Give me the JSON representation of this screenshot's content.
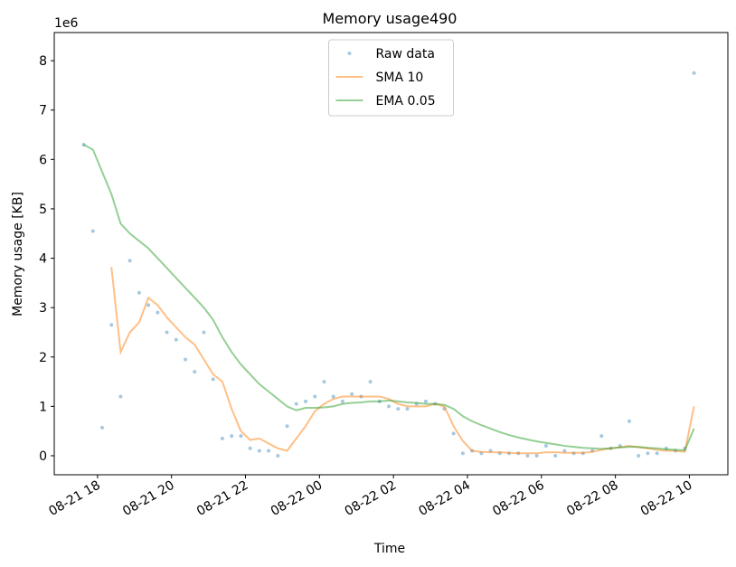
{
  "chart_data": {
    "type": "line",
    "title": "Memory usage490",
    "xlabel": "Time",
    "ylabel": "Memory usage [KB]",
    "y_offset_label": "1e6",
    "x": [
      17.625,
      17.875,
      18.125,
      18.375,
      18.625,
      18.875,
      19.125,
      19.375,
      19.625,
      19.875,
      20.125,
      20.375,
      20.625,
      20.875,
      21.125,
      21.375,
      21.625,
      21.875,
      22.125,
      22.375,
      22.625,
      22.875,
      23.125,
      23.375,
      23.625,
      23.875,
      24.125,
      24.375,
      24.625,
      24.875,
      25.125,
      25.375,
      25.625,
      25.875,
      26.125,
      26.375,
      26.625,
      26.875,
      27.125,
      27.375,
      27.625,
      27.875,
      28.125,
      28.375,
      28.625,
      28.875,
      29.125,
      29.375,
      29.625,
      29.875,
      30.125,
      30.375,
      30.625,
      30.875,
      31.125,
      31.375,
      31.625,
      31.875,
      32.125,
      32.375,
      32.625,
      32.875,
      33.125,
      33.375,
      33.625,
      33.875,
      34.125
    ],
    "series": [
      {
        "name": "Raw data",
        "color": "#1f77b4",
        "mode": "markers",
        "values": [
          6.3,
          4.55,
          0.57,
          2.65,
          1.2,
          3.95,
          3.3,
          3.05,
          2.9,
          2.5,
          2.35,
          1.95,
          1.7,
          2.5,
          1.55,
          0.35,
          0.4,
          0.4,
          0.15,
          0.1,
          0.1,
          0.0,
          0.6,
          1.05,
          1.1,
          1.2,
          1.5,
          1.2,
          1.1,
          1.25,
          1.2,
          1.5,
          1.1,
          1.0,
          0.95,
          0.95,
          1.05,
          1.1,
          1.05,
          0.95,
          0.45,
          0.05,
          0.1,
          0.05,
          0.1,
          0.05,
          0.05,
          0.05,
          0.0,
          0.0,
          0.2,
          0.0,
          0.1,
          0.05,
          0.05,
          0.1,
          0.4,
          0.15,
          0.2,
          0.7,
          0.0,
          0.05,
          0.05,
          0.15,
          0.1,
          0.15,
          7.75
        ]
      },
      {
        "name": "SMA 10",
        "color": "#ff7f0e",
        "mode": "line",
        "values": [
          null,
          null,
          null,
          3.82,
          2.1,
          2.5,
          2.7,
          3.2,
          3.05,
          2.8,
          2.6,
          2.4,
          2.25,
          1.95,
          1.65,
          1.5,
          0.95,
          0.5,
          0.32,
          0.35,
          0.25,
          0.15,
          0.1,
          0.35,
          0.6,
          0.9,
          1.05,
          1.15,
          1.2,
          1.2,
          1.2,
          1.2,
          1.2,
          1.15,
          1.05,
          1.0,
          1.0,
          1.0,
          1.05,
          1.0,
          0.6,
          0.3,
          0.1,
          0.08,
          0.07,
          0.07,
          0.06,
          0.05,
          0.05,
          0.05,
          0.07,
          0.07,
          0.06,
          0.06,
          0.06,
          0.08,
          0.12,
          0.15,
          0.17,
          0.2,
          0.17,
          0.15,
          0.12,
          0.1,
          0.1,
          0.08,
          1.0
        ]
      },
      {
        "name": "EMA 0.05",
        "color": "#2ca02c",
        "mode": "line",
        "values": [
          6.3,
          6.2,
          5.75,
          5.3,
          4.7,
          4.5,
          4.35,
          4.2,
          4.0,
          3.8,
          3.6,
          3.4,
          3.2,
          3.0,
          2.75,
          2.4,
          2.1,
          1.85,
          1.65,
          1.45,
          1.3,
          1.15,
          1.0,
          0.92,
          0.97,
          0.97,
          0.98,
          1.0,
          1.05,
          1.07,
          1.08,
          1.1,
          1.1,
          1.12,
          1.1,
          1.08,
          1.07,
          1.05,
          1.05,
          1.03,
          0.95,
          0.8,
          0.7,
          0.62,
          0.55,
          0.48,
          0.42,
          0.37,
          0.33,
          0.29,
          0.26,
          0.23,
          0.2,
          0.18,
          0.16,
          0.15,
          0.14,
          0.15,
          0.17,
          0.18,
          0.18,
          0.16,
          0.15,
          0.13,
          0.12,
          0.11,
          0.55
        ]
      }
    ],
    "xlim": [
      16.83,
      35.04
    ],
    "ylim": [
      -0.385,
      8.57
    ],
    "xticks": [
      {
        "value": 18,
        "label": "08-21 18"
      },
      {
        "value": 20,
        "label": "08-21 20"
      },
      {
        "value": 22,
        "label": "08-21 22"
      },
      {
        "value": 24,
        "label": "08-22 00"
      },
      {
        "value": 26,
        "label": "08-22 02"
      },
      {
        "value": 28,
        "label": "08-22 04"
      },
      {
        "value": 30,
        "label": "08-22 06"
      },
      {
        "value": 32,
        "label": "08-22 08"
      },
      {
        "value": 34,
        "label": "08-22 10"
      }
    ],
    "yticks": [
      0,
      1,
      2,
      3,
      4,
      5,
      6,
      7,
      8
    ],
    "legend": "upper center",
    "grid": false
  }
}
